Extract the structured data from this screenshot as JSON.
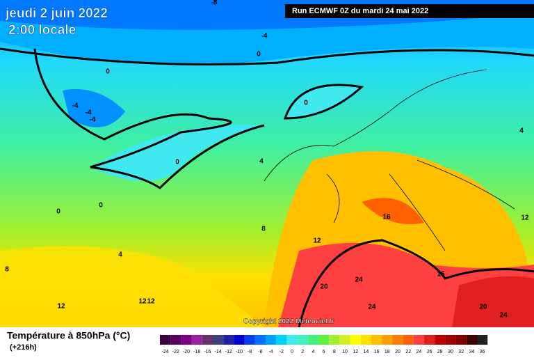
{
  "header": {
    "date": "jeudi 2 juin 2022",
    "time": "2:00 locale",
    "run": "Run ECMWF 0Z du mardi 24 mai 2022"
  },
  "copyright": "Copyright 2022 Meteociel.fr",
  "legend": {
    "title": "Température à 850hPa (°C)",
    "subtitle": "(+216h)",
    "ticks": [
      -24,
      -22,
      -20,
      -18,
      -16,
      -14,
      -12,
      -10,
      -8,
      -6,
      -4,
      -2,
      0,
      2,
      4,
      6,
      8,
      10,
      12,
      14,
      16,
      18,
      20,
      22,
      24,
      26,
      28,
      30,
      32,
      34,
      36
    ],
    "colors": [
      "#3a0040",
      "#5a005e",
      "#7a0080",
      "#9a20a0",
      "#6a3070",
      "#404080",
      "#2020a0",
      "#0000d0",
      "#0040f0",
      "#0070ff",
      "#00a0ff",
      "#00d0ff",
      "#40e8f0",
      "#40f0c0",
      "#40f080",
      "#60f040",
      "#a0f030",
      "#d0f020",
      "#ffff00",
      "#ffe000",
      "#ffc000",
      "#ffa000",
      "#ff8000",
      "#ff6000",
      "#ff4040",
      "#e02020",
      "#c00000",
      "#a00000",
      "#800000",
      "#400000",
      "#202020"
    ]
  },
  "contour_labels": [
    "-8",
    "-4",
    "0",
    "0",
    "-4",
    "-4",
    "-4",
    "0",
    "0",
    "4",
    "4",
    "0",
    "0",
    "8",
    "12",
    "16",
    "12",
    "4",
    "8",
    "12",
    "12",
    "12",
    "20",
    "24",
    "16",
    "24",
    "20",
    "24"
  ]
}
